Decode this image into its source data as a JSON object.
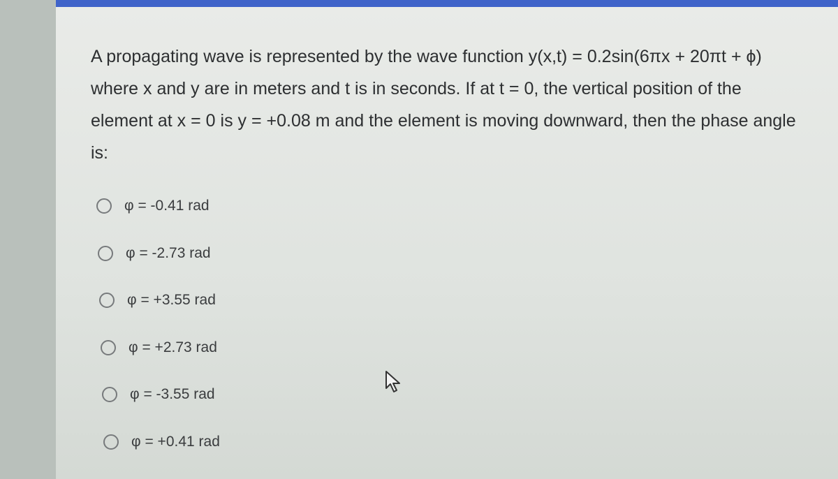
{
  "question": {
    "text": "A propagating wave is represented by the wave function y(x,t) = 0.2sin(6πx + 20πt + ϕ) where x and y are in meters and t is in seconds. If at t = 0, the vertical position of the element at x = 0 is y = +0.08 m and the element is moving downward, then the phase angle is:",
    "options": [
      "φ = -0.41 rad",
      "φ = -2.73 rad",
      "φ = +3.55 rad",
      "φ = +2.73 rad",
      "φ = -3.55 rad",
      "φ = +0.41 rad"
    ]
  }
}
